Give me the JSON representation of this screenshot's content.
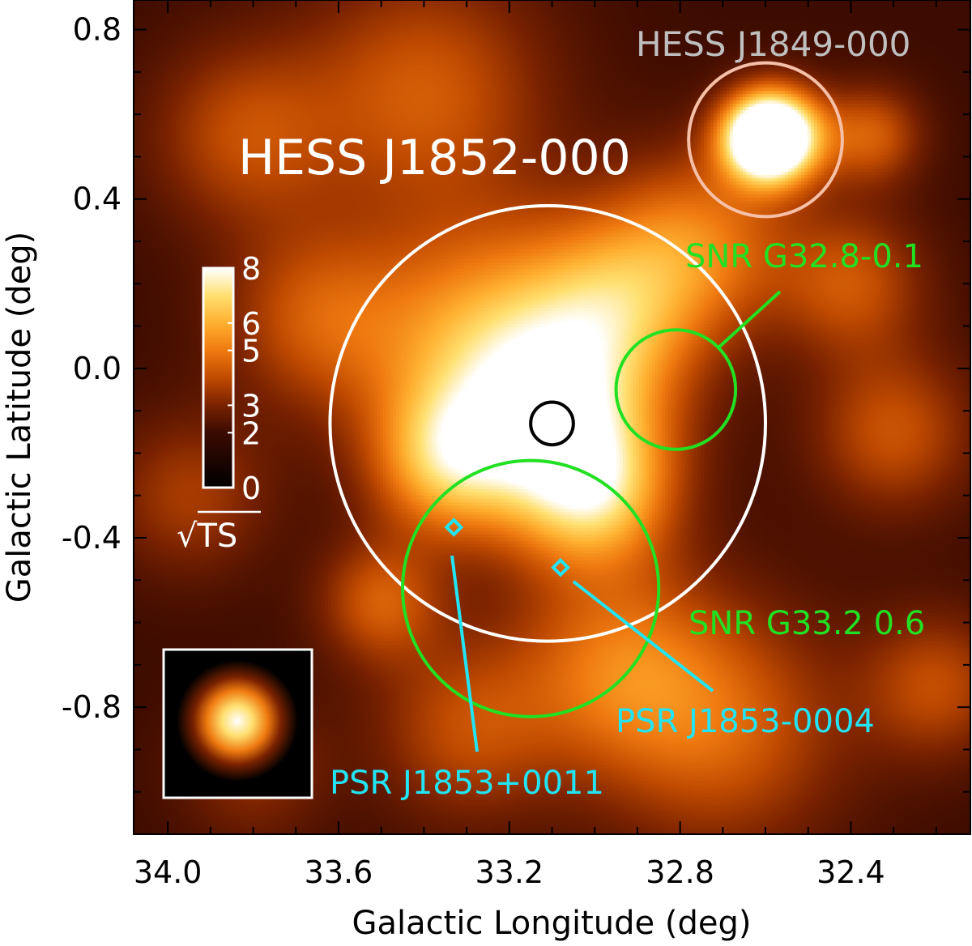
{
  "chart_data": {
    "type": "heatmap",
    "title": "",
    "xlabel": "Galactic Longitude (deg)",
    "ylabel": "Galactic Latitude (deg)",
    "xlim": [
      34.08,
      32.12
    ],
    "ylim": [
      -1.1,
      0.87
    ],
    "x_reversed": true,
    "x_ticks": [
      34.0,
      33.6,
      33.2,
      32.8,
      32.4
    ],
    "x_tick_labels": [
      "34.0",
      "33.6",
      "33.2",
      "32.8",
      "32.4"
    ],
    "y_ticks": [
      0.8,
      0.4,
      0.0,
      -0.4,
      -0.8
    ],
    "y_tick_labels": [
      "0.8",
      "0.4",
      "0.0",
      "-0.4",
      "-0.8"
    ],
    "colorbar": {
      "label": "√TS",
      "ticks": [
        0,
        2,
        3,
        5,
        6,
        8
      ],
      "tick_labels": [
        "0",
        "2",
        "3",
        "5",
        "6",
        "8"
      ],
      "range": [
        0,
        8
      ],
      "colors": [
        "#000000",
        "#3a0a00",
        "#7a2200",
        "#c04a00",
        "#ef7a10",
        "#ffb030",
        "#ffe070",
        "#ffffff"
      ]
    },
    "blobs": [
      {
        "l": 33.08,
        "b": -0.15,
        "width": 0.17,
        "peak": 5.0
      },
      {
        "l": 33.25,
        "b": 0.05,
        "width": 0.2,
        "peak": 4.2
      },
      {
        "l": 32.95,
        "b": 0.15,
        "width": 0.15,
        "peak": 3.4
      },
      {
        "l": 33.35,
        "b": -0.22,
        "width": 0.12,
        "peak": 3.8
      },
      {
        "l": 33.0,
        "b": -0.3,
        "width": 0.12,
        "peak": 3.5
      },
      {
        "l": 32.75,
        "b": 0.3,
        "width": 0.15,
        "peak": 3.0
      },
      {
        "l": 33.5,
        "b": -0.55,
        "width": 0.1,
        "peak": 2.6
      },
      {
        "l": 32.95,
        "b": -0.7,
        "width": 0.17,
        "peak": 2.8
      },
      {
        "l": 32.7,
        "b": -0.85,
        "width": 0.2,
        "peak": 2.6
      },
      {
        "l": 33.3,
        "b": -0.85,
        "width": 0.15,
        "peak": 2.2
      },
      {
        "l": 33.65,
        "b": 0.12,
        "width": 0.15,
        "peak": 2.4
      },
      {
        "l": 33.4,
        "b": 0.65,
        "width": 0.2,
        "peak": 2.6
      },
      {
        "l": 33.82,
        "b": 0.55,
        "width": 0.15,
        "peak": 2.2
      },
      {
        "l": 32.3,
        "b": -0.15,
        "width": 0.13,
        "peak": 2.4
      },
      {
        "l": 32.2,
        "b": -0.75,
        "width": 0.12,
        "peak": 2.2
      },
      {
        "l": 32.55,
        "b": 0.55,
        "width": 0.08,
        "peak": 3.2
      },
      {
        "l": 32.35,
        "b": 0.55,
        "width": 0.08,
        "peak": 2.6
      },
      {
        "l": 33.95,
        "b": -0.3,
        "width": 0.13,
        "peak": 1.8
      },
      {
        "l": 32.4,
        "b": 0.2,
        "width": 0.12,
        "peak": 2.4
      },
      {
        "l": 33.8,
        "b": -0.95,
        "width": 0.12,
        "peak": 1.4
      }
    ],
    "bright_source": {
      "l": 32.6,
      "b": 0.545,
      "width": 0.07,
      "peak": 9.5
    },
    "circles": [
      {
        "id": "hess-j1852-extent",
        "l": 33.11,
        "b": -0.13,
        "r": 0.51,
        "color": "#ffffff"
      },
      {
        "id": "hess-j1849-extent",
        "l": 32.6,
        "b": 0.54,
        "r": 0.18,
        "color": "#f6c0a8"
      },
      {
        "id": "centroid-error",
        "l": 33.1,
        "b": -0.13,
        "r": 0.05,
        "color": "#000000"
      },
      {
        "id": "snr-g32.8",
        "l": 32.81,
        "b": -0.05,
        "r": 0.14,
        "color": "#22e022"
      },
      {
        "id": "snr-g33.2",
        "l": 33.15,
        "b": -0.52,
        "r": 0.3,
        "color": "#22e022"
      }
    ],
    "pulsars": [
      {
        "name": "PSR J1853+0011",
        "l": 33.33,
        "b": -0.375
      },
      {
        "name": "PSR J1853-0004",
        "l": 33.08,
        "b": -0.47
      }
    ],
    "annotations": {
      "hess_j1852": "HESS J1852-000",
      "hess_j1849": "HESS J1849-000",
      "snr_g32": "SNR G32.8-0.1",
      "snr_g33": "SNR G33.2 0.6",
      "psr_1": "PSR J1853+0011",
      "psr_2": "PSR J1853-0004"
    },
    "colors": {
      "snr": "#22e022",
      "pulsar": "#22e4f4",
      "hess_main": "#ffffff",
      "hess_bright": "#bfbfbf"
    }
  }
}
